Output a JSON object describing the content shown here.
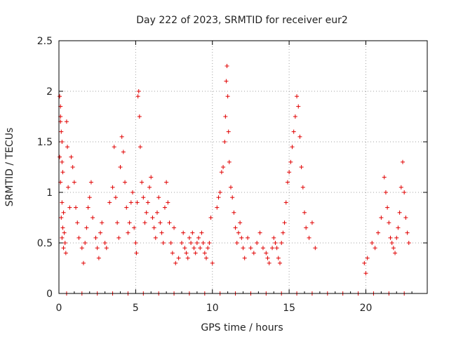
{
  "chart_data": {
    "type": "scatter",
    "title": "Day 222 of 2023, SRMTID for receiver eur2",
    "xlabel": "GPS time / hours",
    "ylabel": "SRMTID / TECUs",
    "xlim": [
      0,
      24
    ],
    "ylim": [
      0,
      2.5
    ],
    "x_ticks": [
      0,
      5,
      10,
      15,
      20
    ],
    "y_ticks": [
      0,
      0.5,
      1,
      1.5,
      2,
      2.5
    ],
    "x_tick_labels": [
      "0",
      "5",
      "10",
      "15",
      "20"
    ],
    "y_tick_labels": [
      "0",
      "0.5",
      "1",
      "1.5",
      "2",
      "2.5"
    ],
    "grid": true,
    "marker": "+",
    "marker_color": "#e00000",
    "series": [
      {
        "name": "SRMTID",
        "x": [
          0.05,
          0.1,
          0.1,
          0.15,
          0.2,
          0.2,
          0.25,
          0.3,
          0.35,
          0.4,
          0.45,
          0.5,
          0.55,
          0.6,
          0.7,
          0.1,
          0.15,
          0.2,
          0.3,
          0.05,
          0.1,
          0.2,
          0.25,
          0.8,
          0.9,
          1.0,
          1.1,
          1.2,
          1.3,
          1.5,
          1.6,
          1.7,
          1.8,
          1.9,
          2.0,
          2.1,
          2.2,
          2.4,
          2.5,
          2.6,
          2.7,
          2.8,
          3.0,
          3.1,
          3.3,
          3.5,
          3.6,
          3.7,
          3.8,
          3.9,
          4.0,
          4.1,
          4.2,
          4.3,
          4.4,
          4.5,
          4.6,
          4.7,
          4.8,
          4.9,
          5.0,
          5.05,
          5.1,
          5.15,
          5.2,
          5.25,
          5.3,
          5.4,
          5.5,
          5.6,
          5.7,
          5.8,
          5.9,
          6.0,
          6.1,
          6.2,
          6.3,
          6.4,
          6.5,
          6.6,
          6.7,
          6.8,
          6.9,
          7.0,
          7.1,
          7.2,
          7.3,
          7.4,
          7.5,
          7.6,
          7.8,
          8.0,
          8.1,
          8.2,
          8.3,
          8.4,
          8.5,
          8.6,
          8.7,
          8.8,
          8.9,
          9.0,
          9.1,
          9.2,
          9.3,
          9.4,
          9.5,
          9.6,
          9.7,
          9.8,
          9.9,
          10.0,
          10.3,
          10.4,
          10.5,
          10.6,
          10.7,
          10.8,
          10.85,
          10.9,
          10.95,
          11.0,
          11.05,
          11.1,
          11.2,
          11.3,
          11.4,
          11.5,
          11.6,
          11.7,
          11.8,
          11.9,
          12.0,
          12.1,
          12.3,
          12.5,
          12.7,
          12.9,
          13.1,
          13.3,
          13.5,
          13.6,
          13.7,
          13.9,
          14.0,
          14.1,
          14.2,
          14.3,
          14.4,
          14.5,
          14.6,
          14.7,
          14.8,
          14.9,
          15.0,
          15.1,
          15.2,
          15.3,
          15.4,
          15.5,
          15.6,
          15.7,
          15.8,
          15.9,
          16.0,
          16.1,
          16.3,
          16.5,
          16.7,
          19.9,
          20.0,
          20.1,
          20.4,
          20.6,
          20.8,
          21.0,
          21.2,
          21.3,
          21.4,
          21.5,
          21.6,
          21.7,
          21.8,
          21.9,
          22.0,
          22.1,
          22.2,
          22.3,
          22.4,
          22.5,
          22.6,
          22.7,
          22.8,
          0.5,
          1.5,
          2.5,
          3.5,
          4.5,
          5.5,
          6.5,
          7.5,
          8.5,
          9.5,
          10.5,
          11.5,
          12.5,
          13.5,
          14.5,
          15.5,
          16.5,
          17.5,
          18.5,
          19.5,
          20.5,
          21.5,
          22.5
        ],
        "y": [
          1.95,
          1.85,
          1.7,
          1.6,
          1.5,
          1.3,
          1.2,
          0.8,
          0.6,
          0.5,
          0.4,
          1.7,
          1.45,
          1.05,
          0.85,
          1.75,
          0.75,
          0.55,
          0.45,
          1.35,
          1.1,
          0.9,
          0.65,
          1.35,
          1.25,
          1.1,
          0.85,
          0.7,
          0.55,
          0.45,
          0.3,
          0.5,
          0.65,
          0.85,
          0.95,
          1.1,
          0.75,
          0.55,
          0.45,
          0.35,
          0.6,
          0.7,
          0.5,
          0.45,
          0.9,
          1.05,
          1.45,
          0.95,
          0.7,
          0.55,
          1.25,
          1.55,
          1.4,
          1.1,
          0.85,
          0.6,
          0.7,
          0.9,
          1.0,
          0.65,
          0.5,
          0.4,
          0.9,
          1.95,
          2.0,
          1.75,
          1.45,
          1.1,
          0.95,
          0.7,
          0.8,
          0.9,
          1.05,
          1.15,
          0.75,
          0.65,
          0.55,
          0.8,
          0.95,
          0.7,
          0.6,
          0.5,
          0.85,
          1.1,
          0.9,
          0.7,
          0.5,
          0.4,
          0.65,
          0.3,
          0.35,
          0.5,
          0.6,
          0.45,
          0.4,
          0.35,
          0.55,
          0.5,
          0.6,
          0.45,
          0.4,
          0.5,
          0.55,
          0.45,
          0.6,
          0.5,
          0.4,
          0.35,
          0.45,
          0.5,
          0.75,
          0.3,
          0.85,
          0.95,
          1.0,
          1.2,
          1.25,
          1.5,
          1.75,
          2.1,
          2.25,
          1.95,
          1.6,
          1.3,
          1.05,
          0.95,
          0.8,
          0.65,
          0.5,
          0.6,
          0.7,
          0.55,
          0.45,
          0.35,
          0.55,
          0.45,
          0.4,
          0.5,
          0.6,
          0.45,
          0.4,
          0.35,
          0.3,
          0.45,
          0.55,
          0.5,
          0.45,
          0.35,
          0.3,
          0.5,
          0.6,
          0.7,
          0.9,
          1.1,
          1.2,
          1.3,
          1.45,
          1.6,
          1.75,
          1.95,
          1.85,
          1.55,
          1.25,
          1.05,
          0.8,
          0.65,
          0.55,
          0.7,
          0.45,
          0.3,
          0.2,
          0.35,
          0.5,
          0.45,
          0.6,
          0.75,
          1.15,
          1.0,
          0.85,
          0.7,
          0.55,
          0.5,
          0.45,
          0.4,
          0.55,
          0.65,
          0.8,
          1.05,
          1.3,
          1.0,
          0.75,
          0.6,
          0.5,
          0,
          0,
          0,
          0,
          0,
          0,
          0,
          0,
          0,
          0,
          0,
          0,
          0,
          0,
          0,
          0,
          0,
          0,
          0,
          0,
          0,
          0,
          0
        ]
      }
    ]
  }
}
